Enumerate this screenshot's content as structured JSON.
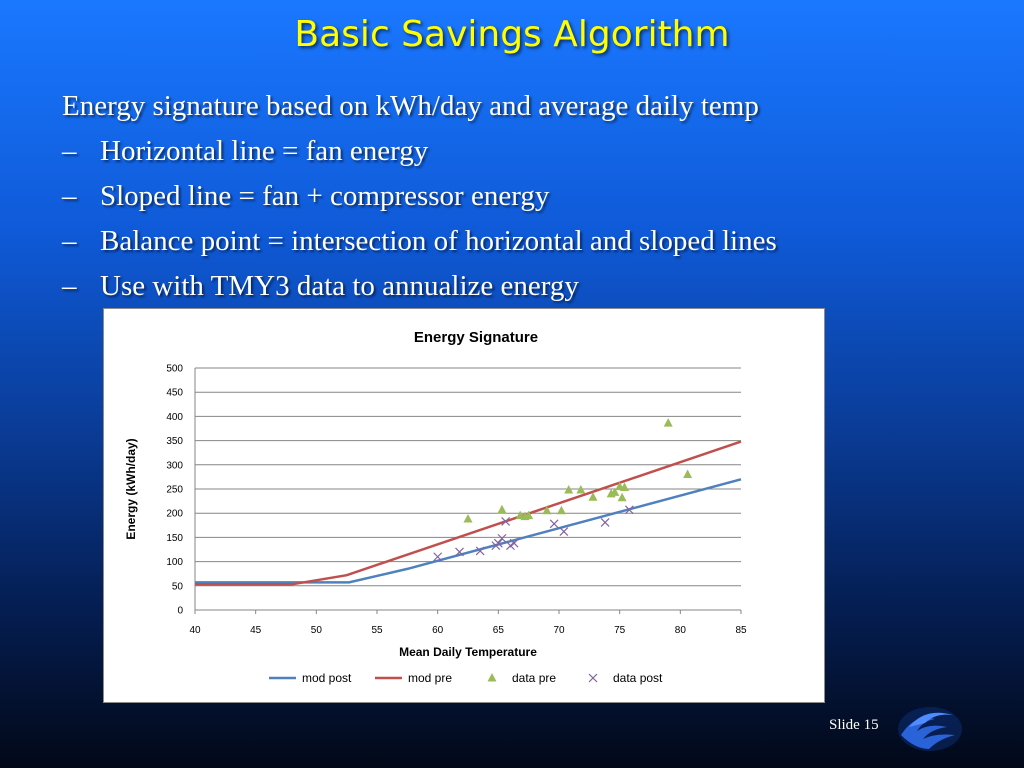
{
  "slide": {
    "title": "Basic Savings Algorithm",
    "intro": "Energy signature based on kWh/day and average daily temp",
    "bullets": [
      "Horizontal line = fan energy",
      "Sloped line = fan + compressor energy",
      "Balance point = intersection of horizontal and sloped lines",
      "Use with TMY3 data to annualize energy"
    ],
    "bullet_marker": "–",
    "footer": "Slide 15",
    "logo_icon": "wave-logo-icon"
  },
  "chart_data": {
    "type": "scatter",
    "title": "Energy Signature",
    "xlabel": "Mean Daily Temperature",
    "ylabel": "Energy  (kWh/day)",
    "xlim": [
      40,
      85
    ],
    "ylim": [
      0,
      500
    ],
    "xticks": [
      40,
      45,
      50,
      55,
      60,
      65,
      70,
      75,
      80,
      85
    ],
    "yticks": [
      0,
      50,
      100,
      150,
      200,
      250,
      300,
      350,
      400,
      450,
      500
    ],
    "grid": true,
    "legend_position": "bottom",
    "series": [
      {
        "name": "mod post",
        "kind": "line",
        "color": "#4f81bd",
        "points": [
          [
            40,
            57
          ],
          [
            52.7,
            57
          ],
          [
            57.5,
            85
          ],
          [
            85,
            270
          ]
        ]
      },
      {
        "name": "mod pre",
        "kind": "line",
        "color": "#c0504d",
        "points": [
          [
            40,
            53
          ],
          [
            48,
            53
          ],
          [
            52.5,
            72
          ],
          [
            85,
            348
          ]
        ]
      },
      {
        "name": "data pre",
        "kind": "triangle",
        "color": "#9bbb59",
        "points": [
          [
            62.5,
            188
          ],
          [
            65.3,
            207
          ],
          [
            66.8,
            195
          ],
          [
            67.2,
            193
          ],
          [
            67.5,
            195
          ],
          [
            69,
            205
          ],
          [
            70.2,
            205
          ],
          [
            70.8,
            248
          ],
          [
            71.8,
            248
          ],
          [
            72.8,
            233
          ],
          [
            74.3,
            240
          ],
          [
            74.6,
            243
          ],
          [
            75,
            255
          ],
          [
            75.2,
            232
          ],
          [
            75.4,
            253
          ],
          [
            79,
            386
          ],
          [
            80.6,
            280
          ]
        ]
      },
      {
        "name": "data post",
        "kind": "cross",
        "color": "#8064a2",
        "points": [
          [
            60,
            110
          ],
          [
            61.8,
            120
          ],
          [
            63.5,
            122
          ],
          [
            64.8,
            133
          ],
          [
            65,
            138
          ],
          [
            65.3,
            148
          ],
          [
            65.6,
            183
          ],
          [
            66,
            133
          ],
          [
            66.3,
            138
          ],
          [
            69.6,
            178
          ],
          [
            70.4,
            162
          ],
          [
            73.8,
            181
          ],
          [
            75.8,
            207
          ]
        ]
      }
    ]
  }
}
